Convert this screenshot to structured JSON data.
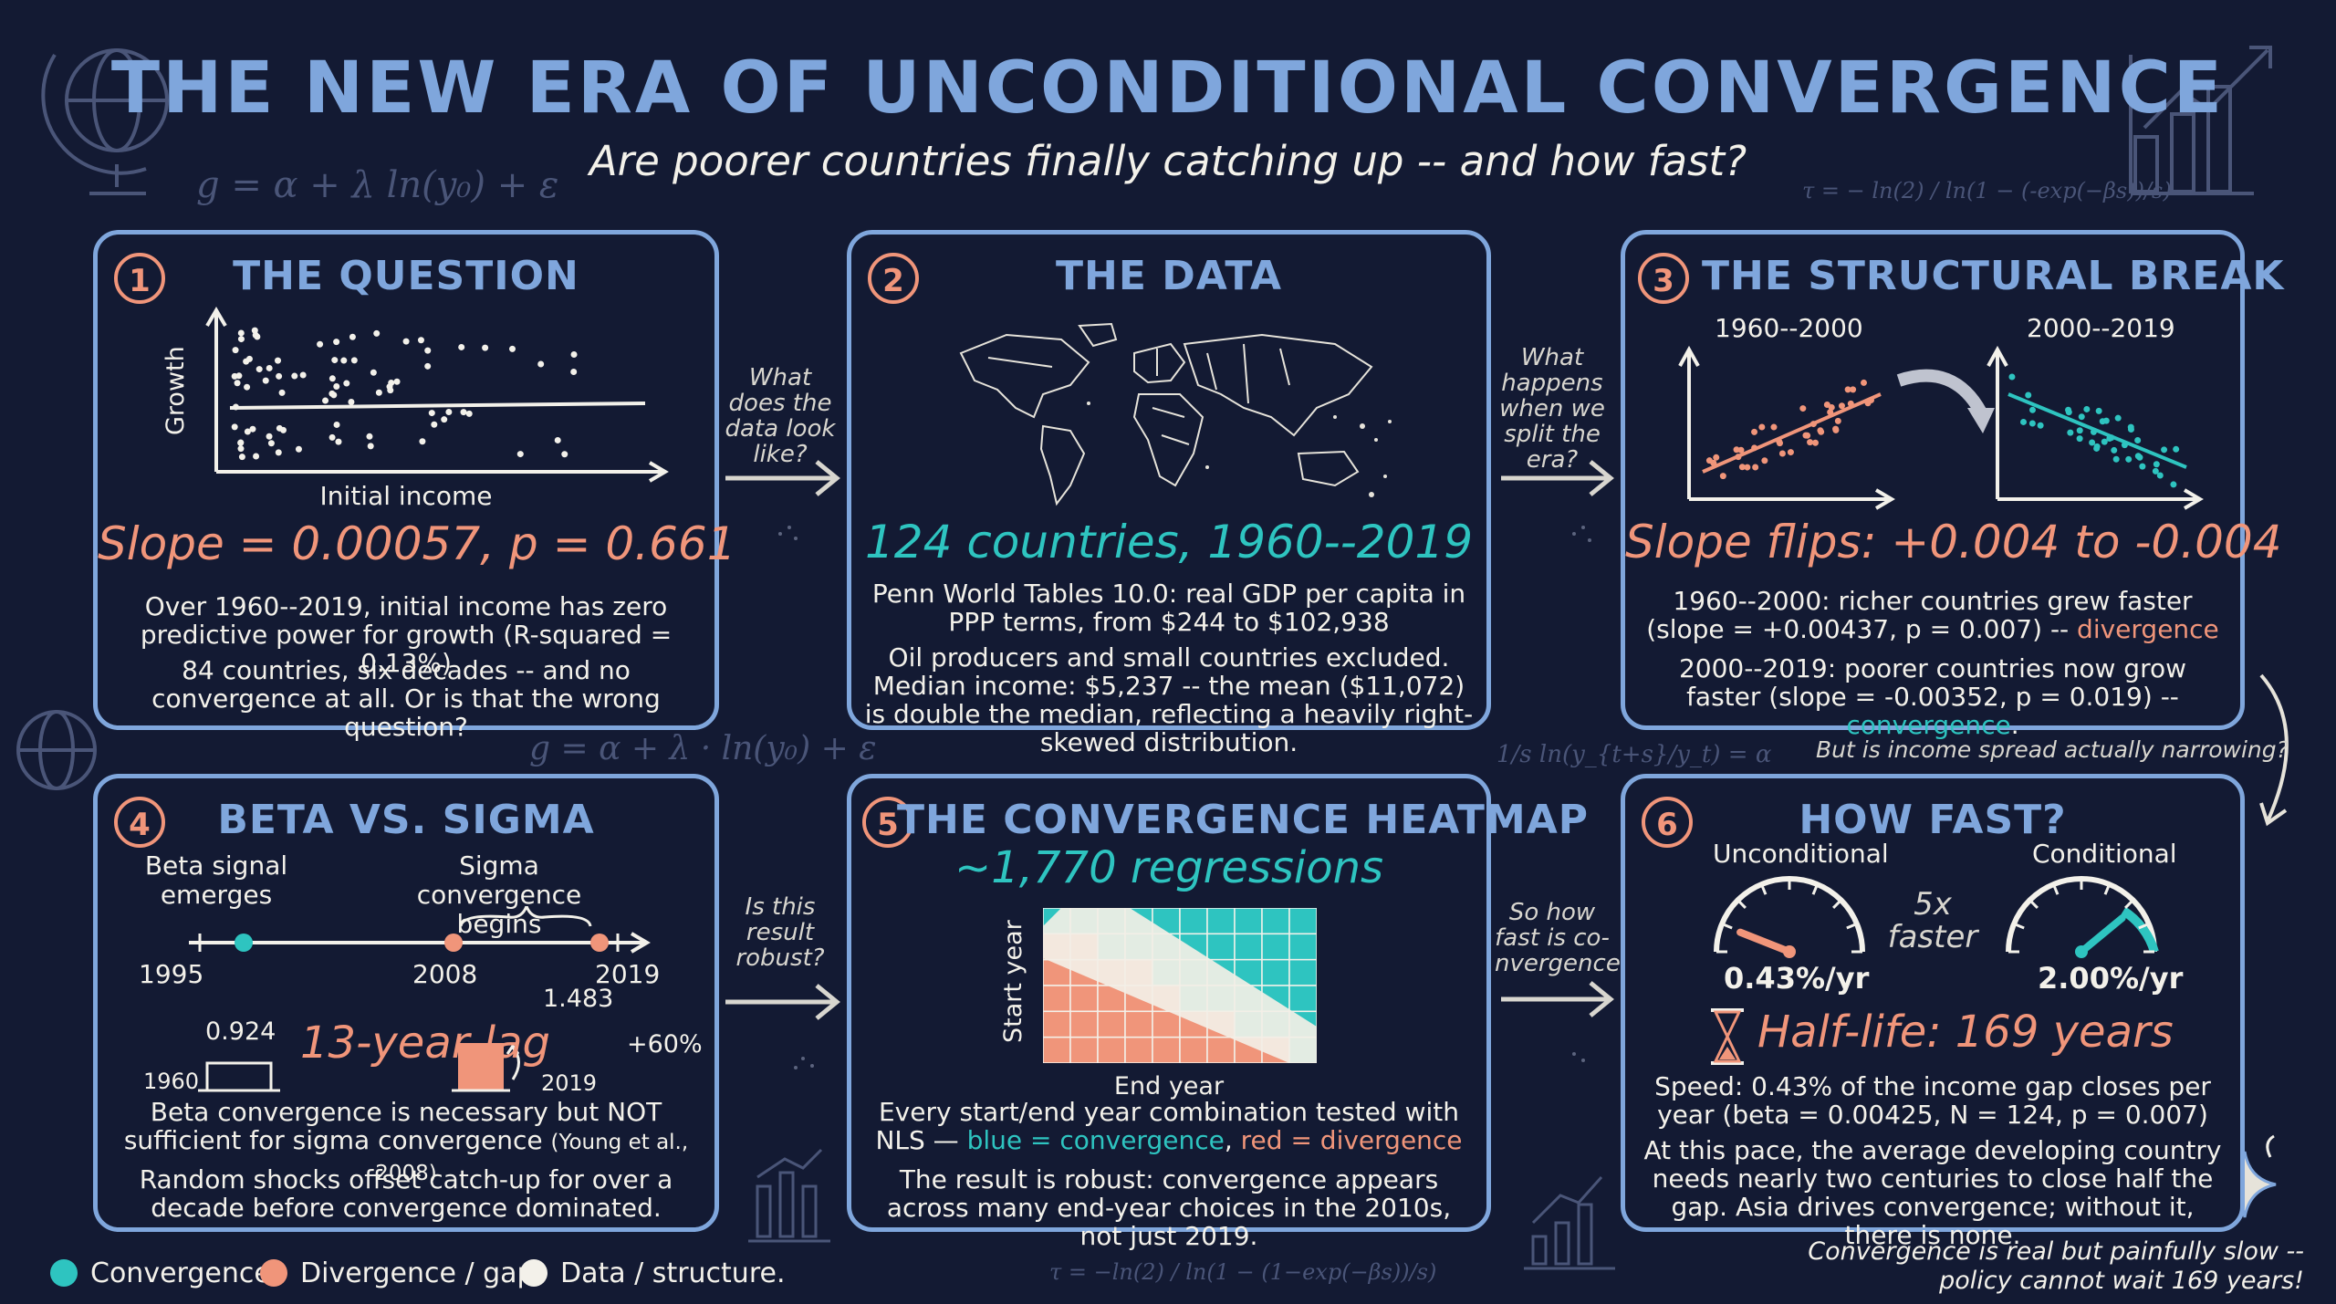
{
  "header": {
    "title": "THE NEW ERA OF UNCONDITIONAL CONVERGENCE",
    "subtitle": "Are poorer countries finally catching up -- and how fast?"
  },
  "formulas": {
    "top_left": "g = α + λ ln(y₀) + ε",
    "top_right": "τ = − ln(2) / ln(1 − (-exp(−βs))/s)",
    "mid_left": "g = α + λ · ln(y₀) + ε",
    "mid_right": "1/s ln(y_{t+s}/y_t) = α",
    "bottom": "τ = −ln(2) / ln(1 − (1−exp(−βs))/s)"
  },
  "panel1": {
    "number": "1",
    "title": "THE QUESTION",
    "y_axis": "Growth",
    "x_axis": "Initial income",
    "headline": "Slope = 0.00057, p = 0.661",
    "text1": "Over 1960--2019, initial income has zero predictive power for growth (R-squared = 0.13%)",
    "text2": "84 countries, six decades -- and no convergence at all. Or is that the wrong question?"
  },
  "arrow1_text": "What does the data look like?",
  "panel2": {
    "number": "2",
    "title": "THE DATA",
    "headline": "124 countries, 1960--2019",
    "text1": "Penn World Tables 10.0: real GDP per capita in PPP terms, from $244 to $102,938",
    "text2": "Oil producers and small countries excluded. Median income: $5,237 -- the mean ($11,072) is double the median, reflecting a heavily right-skewed distribution."
  },
  "arrow2_text": "What happens when we split the era?",
  "panel3": {
    "number": "3",
    "title": "THE STRUCTURAL BREAK",
    "left_period": "1960--2000",
    "right_period": "2000--2019",
    "headline": "Slope flips: +0.004 to -0.004",
    "text1_a": "1960--2000: richer countries grew faster (slope = +0.00437, p = 0.007) -- ",
    "text1_b": "divergence",
    "text2_a": "2000--2019: poorer countries now grow faster (slope = -0.00352, p = 0.019) -- ",
    "text2_b": "convergence",
    "text2_c": "."
  },
  "transition_text": "But is income spread actually narrowing?",
  "panel4": {
    "number": "4",
    "title": "BETA VS. SIGMA",
    "beta_label": "Beta signal emerges",
    "sigma_label": "Sigma convergence begins",
    "year_1995": "1995",
    "year_2008": "2008",
    "year_2019": "2019",
    "bar_1960_value": "0.924",
    "bar_1960_year": "1960",
    "bar_2019_value": "1.483",
    "bar_2019_year": "2019",
    "increase": "+60%",
    "headline": "13-year lag",
    "text1_a": "Beta convergence is necessary but NOT sufficient for sigma convergence ",
    "text1_b": "(Young et al., 2008)",
    "text2": "Random shocks offset catch-up for over a decade before convergence dominated."
  },
  "arrow3_text": "Is this result robust?",
  "panel5": {
    "number": "5",
    "title": "THE CONVERGENCE HEATMAP",
    "headline": "~1,770 regressions",
    "y_axis": "Start year",
    "x_axis": "End year",
    "text1_a": "Every start/end year combination tested with NLS — ",
    "text1_b": "blue = convergence",
    "text1_c": ", ",
    "text1_d": "red = divergence",
    "text2": "The result is robust: convergence appears across many end-year choices in the 2010s, not just 2019."
  },
  "arrow4_text": "So how fast is co-nvergence?",
  "panel6": {
    "number": "6",
    "title": "HOW FAST?",
    "left_label": "Unconditional",
    "right_label": "Conditional",
    "multiplier": "5x faster",
    "left_rate": "0.43%/yr",
    "right_rate": "2.00%/yr",
    "headline": "Half-life: 169 years",
    "text1": "Speed: 0.43% of the income gap closes per year (beta = 0.00425, N = 124, p = 0.007)",
    "text2": "At this pace, the average developing country needs nearly two centuries to close half the gap. Asia drives convergence; without it, there is none."
  },
  "legend": {
    "convergence": "Convergence",
    "divergence": "Divergence / gap",
    "data": "Data / structure.",
    "colors": {
      "convergence": "#2ec4c0",
      "divergence": "#f0957a",
      "data": "#f3f1ea",
      "accent": "#7fa6dc"
    }
  },
  "closing": {
    "line1": "Convergence is real but painfully slow --",
    "line2": "policy cannot wait 169 years!"
  }
}
